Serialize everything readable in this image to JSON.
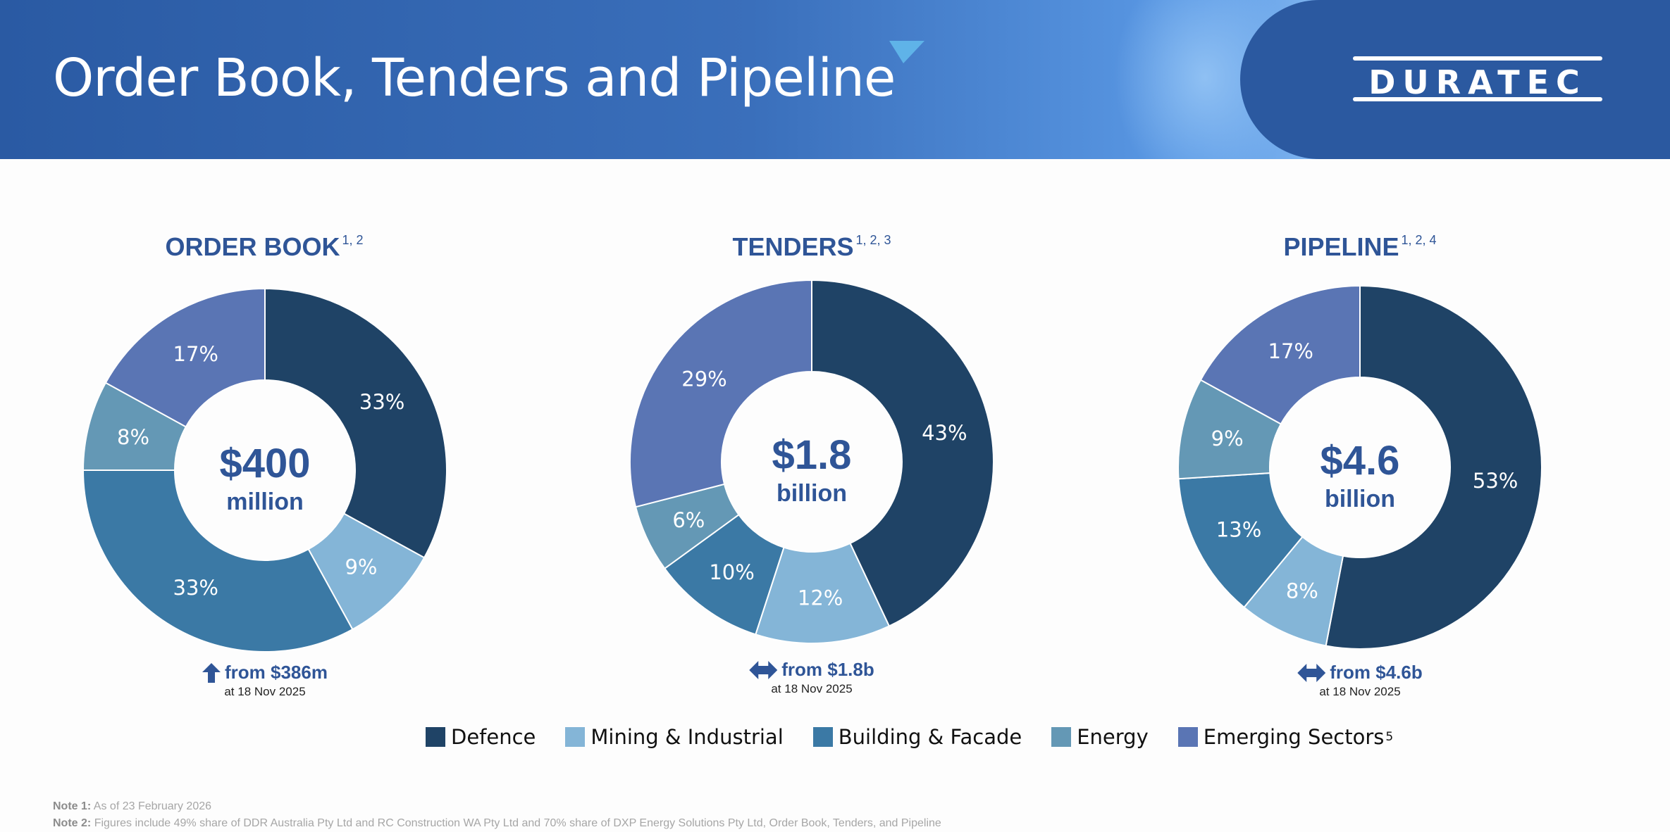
{
  "header": {
    "title": "Order Book, Tenders and Pipeline",
    "logo_text": "DURATEC"
  },
  "colors": {
    "Defence": "#1f4366",
    "Mining & Industrial": "#84b5d7",
    "Building & Facade": "#3b79a5",
    "Energy": "#6498b5",
    "Emerging Sectors": "#5a75b4",
    "accent_text": "#2f5597"
  },
  "chart_data": [
    {
      "type": "pie",
      "title": "ORDER BOOK",
      "title_sup": "1, 2",
      "center_value": "$400",
      "center_unit": "million",
      "categories": [
        "Defence",
        "Mining & Industrial",
        "Building & Facade",
        "Energy",
        "Emerging Sectors"
      ],
      "values": [
        33,
        9,
        33,
        8,
        17
      ],
      "labels": [
        "33%",
        "9%",
        "33%",
        "8%",
        "17%"
      ],
      "change_icon": "up-arrow-icon",
      "change_text": "from $386m",
      "change_date": "at 18 Nov 2025"
    },
    {
      "type": "pie",
      "title": "TENDERS",
      "title_sup": "1, 2, 3",
      "center_value": "$1.8",
      "center_unit": "billion",
      "categories": [
        "Defence",
        "Mining & Industrial",
        "Building & Facade",
        "Energy",
        "Emerging Sectors"
      ],
      "values": [
        43,
        12,
        10,
        6,
        29
      ],
      "labels": [
        "43%",
        "12%",
        "10%",
        "6%",
        "29%"
      ],
      "change_icon": "double-arrow-icon",
      "change_text": "from $1.8b",
      "change_date": "at 18 Nov 2025"
    },
    {
      "type": "pie",
      "title": "PIPELINE",
      "title_sup": "1, 2, 4",
      "center_value": "$4.6",
      "center_unit": "billion",
      "categories": [
        "Defence",
        "Mining & Industrial",
        "Building & Facade",
        "Energy",
        "Emerging Sectors"
      ],
      "values": [
        53,
        8,
        13,
        9,
        17
      ],
      "labels": [
        "53%",
        "8%",
        "13%",
        "9%",
        "17%"
      ],
      "change_icon": "double-arrow-icon",
      "change_text": "from $4.6b",
      "change_date": "at 18 Nov 2025"
    }
  ],
  "legend": {
    "items": [
      {
        "label": "Defence"
      },
      {
        "label": "Mining & Industrial"
      },
      {
        "label": "Building & Facade"
      },
      {
        "label": "Energy"
      },
      {
        "label": "Emerging Sectors",
        "sup": "5"
      }
    ]
  },
  "notes": [
    {
      "label": "Note 1:",
      "text": "As of 23 February 2026"
    },
    {
      "label": "Note 2:",
      "text": "Figures include 49% share of DDR Australia Pty Ltd and RC Construction WA Pty Ltd and 70% share of DXP Energy Solutions Pty Ltd,  Order Book, Tenders, and Pipeline"
    }
  ]
}
